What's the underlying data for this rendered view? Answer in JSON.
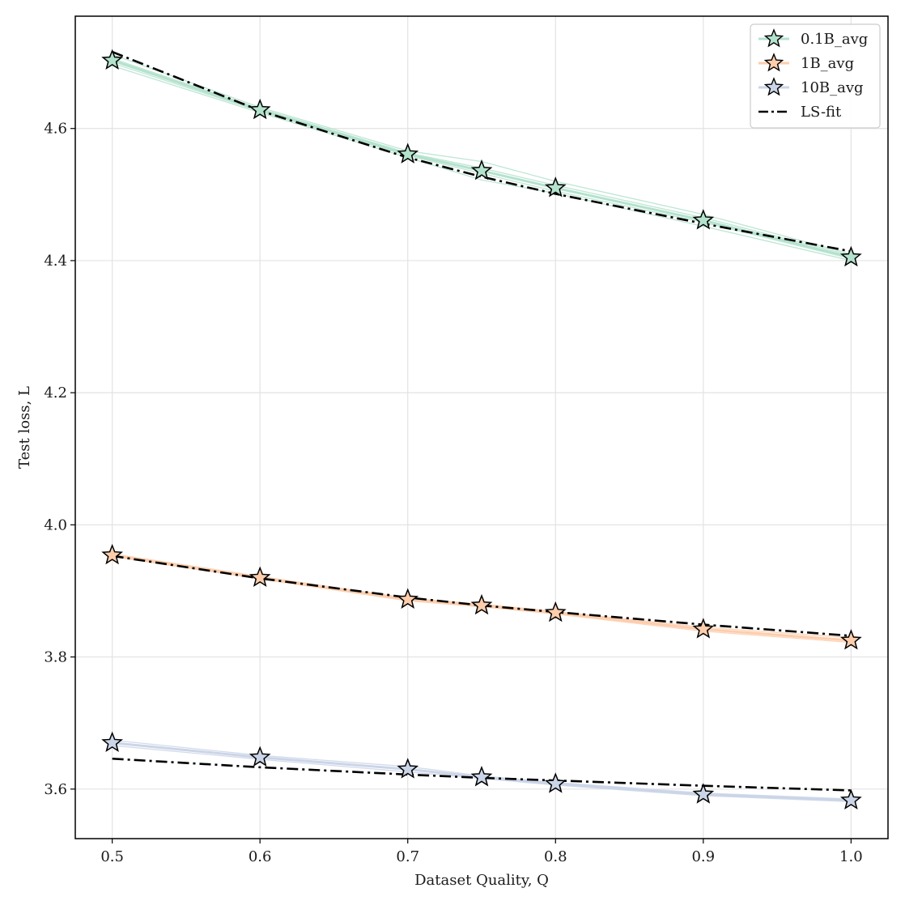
{
  "chart_data": {
    "type": "line",
    "title": "",
    "xlabel": "Dataset Quality, Q",
    "ylabel": "Test loss, L",
    "xlim": [
      0.475,
      1.025
    ],
    "ylim": [
      3.525,
      4.77
    ],
    "x": [
      0.5,
      0.6,
      0.7,
      0.75,
      0.8,
      0.9,
      1.0
    ],
    "xticks": [
      0.5,
      0.6,
      0.7,
      0.8,
      0.9,
      1.0
    ],
    "xtick_labels": [
      "0.5",
      "0.6",
      "0.7",
      "0.8",
      "0.9",
      "1.0"
    ],
    "yticks": [
      3.6,
      3.8,
      4.0,
      4.2,
      4.4,
      4.6
    ],
    "ytick_labels": [
      "3.6",
      "3.8",
      "4.0",
      "4.2",
      "4.4",
      "4.6"
    ],
    "grid": true,
    "legend_position": "top-right",
    "series": [
      {
        "name": "0.1B_avg",
        "color": "#b3e2cd",
        "marker": "star",
        "values": [
          4.703,
          4.628,
          4.561,
          4.536,
          4.51,
          4.461,
          4.405
        ],
        "runs": [
          [
            4.712,
            4.632,
            4.566,
            4.55,
            4.52,
            4.47,
            4.41
          ],
          [
            4.695,
            4.624,
            4.556,
            4.522,
            4.502,
            4.452,
            4.4
          ],
          [
            4.706,
            4.63,
            4.563,
            4.54,
            4.514,
            4.465,
            4.408
          ],
          [
            4.699,
            4.626,
            4.559,
            4.532,
            4.505,
            4.458,
            4.403
          ]
        ],
        "fit": [
          4.716,
          4.627,
          4.556,
          4.527,
          4.501,
          4.456,
          4.414
        ]
      },
      {
        "name": "1B_avg",
        "color": "#fdcdac",
        "marker": "star",
        "values": [
          3.954,
          3.92,
          3.887,
          3.878,
          3.867,
          3.842,
          3.825
        ],
        "runs": [
          [
            3.956,
            3.922,
            3.889,
            3.88,
            3.869,
            3.845,
            3.829
          ],
          [
            3.952,
            3.918,
            3.885,
            3.876,
            3.865,
            3.839,
            3.822
          ]
        ],
        "fit": [
          3.953,
          3.919,
          3.89,
          3.878,
          3.868,
          3.849,
          3.832
        ]
      },
      {
        "name": "10B_avg",
        "color": "#cbd5e8",
        "marker": "star",
        "values": [
          3.67,
          3.648,
          3.63,
          3.618,
          3.608,
          3.592,
          3.583
        ],
        "runs": [
          [
            3.674,
            3.651,
            3.634,
            3.62,
            3.61,
            3.594,
            3.585
          ],
          [
            3.666,
            3.645,
            3.626,
            3.616,
            3.606,
            3.59,
            3.581
          ]
        ],
        "fit": [
          3.646,
          3.633,
          3.622,
          3.617,
          3.613,
          3.605,
          3.598
        ]
      }
    ],
    "fit_legend": {
      "name": "LS-fit",
      "color": "#000000",
      "style": "dash-dot"
    }
  }
}
